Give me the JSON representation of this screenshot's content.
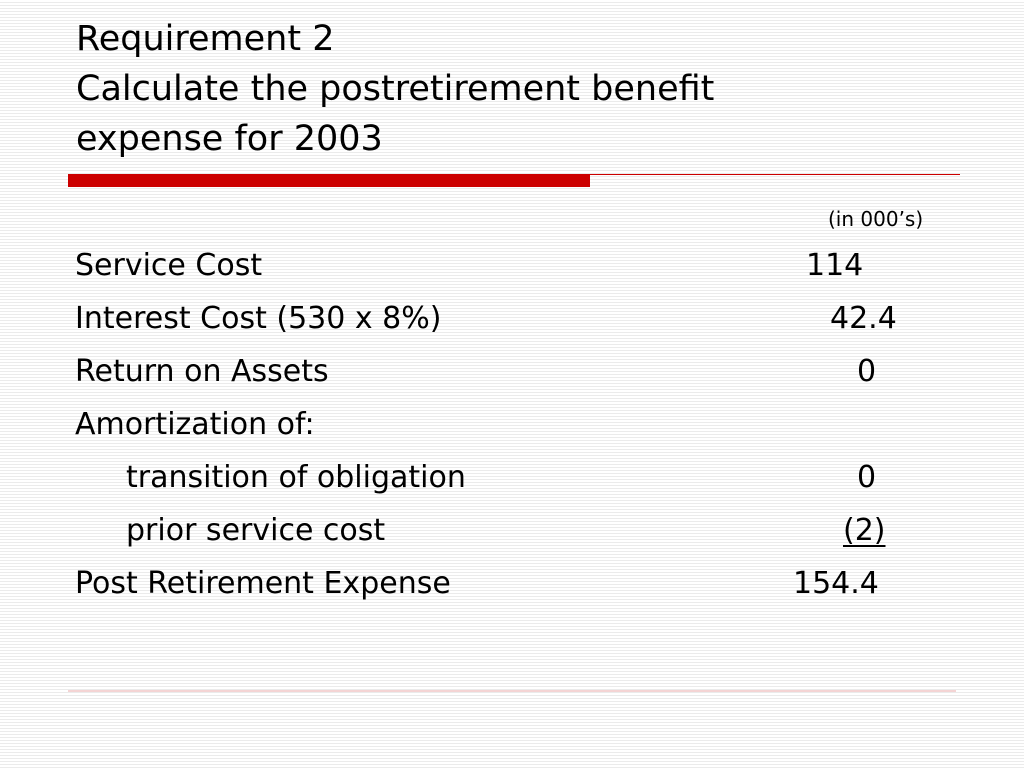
{
  "title": {
    "line1": "Requirement 2",
    "line2": "Calculate the postretirement benefit",
    "line3": "expense for 2003"
  },
  "colors": {
    "accent_red": "#cc0000",
    "rule_thin": "#cc0000",
    "rule_bottom": "#f4d4d4"
  },
  "unit_note": "(in 000’s)",
  "rows": [
    {
      "label": "Service Cost",
      "value": "114"
    },
    {
      "label": "Interest Cost (530 x 8%)",
      "value": "42.4"
    },
    {
      "label": "Return on Assets",
      "value": "0"
    },
    {
      "label": "Amortization of:",
      "value": ""
    },
    {
      "label": "transition of obligation",
      "value": "0"
    },
    {
      "label": "prior service cost",
      "value": "(2)"
    },
    {
      "label": "Post Retirement Expense",
      "value": "154.4"
    }
  ]
}
